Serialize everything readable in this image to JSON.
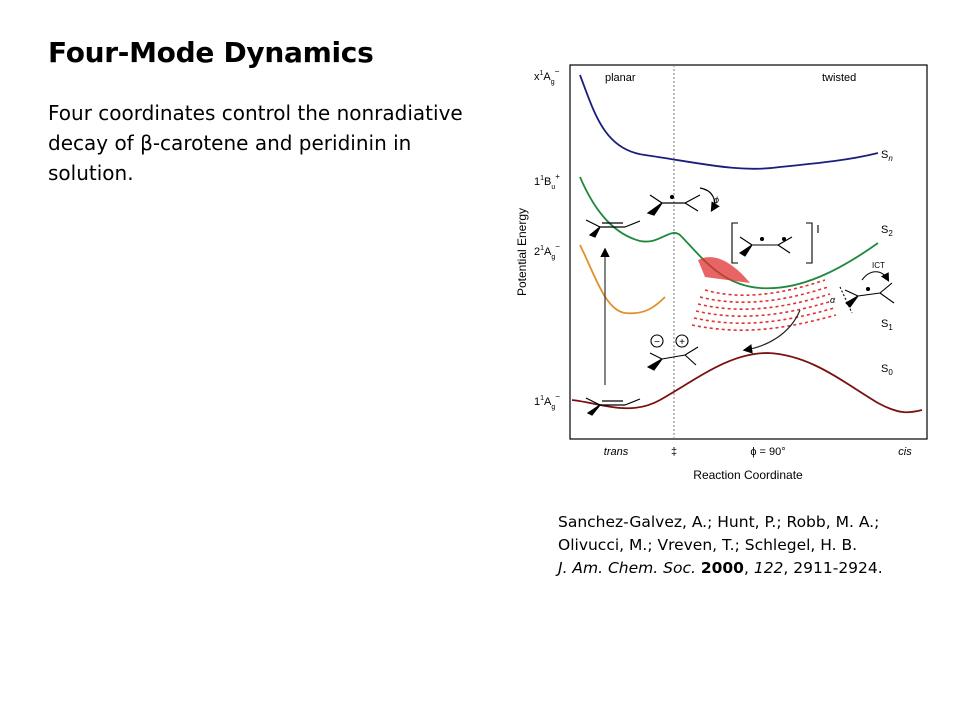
{
  "slide": {
    "title": "Four-Mode Dynamics",
    "subtitle": "Four coordinates control the nonradiative decay of β-carotene and peridinin in solution."
  },
  "figure": {
    "region_labels": {
      "left": "planar",
      "right": "twisted"
    },
    "y_axis_label": "Potential Energy",
    "x_axis_label": "Reaction Coordinate",
    "x_ticks": [
      "trans",
      "‡",
      "ϕ = 90°",
      "cis"
    ],
    "state_labels_left": [
      {
        "main": "x",
        "sup1": "1",
        "base": "A",
        "sub": "g",
        "sup2": "−"
      },
      {
        "main": "1",
        "sup1": "1",
        "base": "B",
        "sub": "u",
        "sup2": "+"
      },
      {
        "main": "2",
        "sup1": "1",
        "base": "A",
        "sub": "g",
        "sup2": "−"
      },
      {
        "main": "1",
        "sup1": "1",
        "base": "A",
        "sub": "g",
        "sup2": "−"
      }
    ],
    "curve_labels_right": [
      {
        "base": "S",
        "sub": "n"
      },
      {
        "base": "S",
        "sub": "2"
      },
      {
        "base": "S",
        "sub": "1"
      },
      {
        "base": "S",
        "sub": "0"
      }
    ],
    "annotations": {
      "ict": "ICT",
      "phi": "ϕ",
      "alpha": "α",
      "minus": "−",
      "plus": "+"
    },
    "colors": {
      "sn": "#1a1f7a",
      "s2": "#1f8a3c",
      "s1": "#e0902a",
      "s0": "#7a1010",
      "wavepacket": "#e23030"
    }
  },
  "citation": {
    "line1": "Sanchez-Galvez, A.; Hunt, P.; Robb, M. A.;",
    "line2": "Olivucci, M.; Vreven, T.; Schlegel, H. B.",
    "journal": "J. Am. Chem. Soc.",
    "year": "2000",
    "volume": "122",
    "pages": ", 2911-2924."
  }
}
